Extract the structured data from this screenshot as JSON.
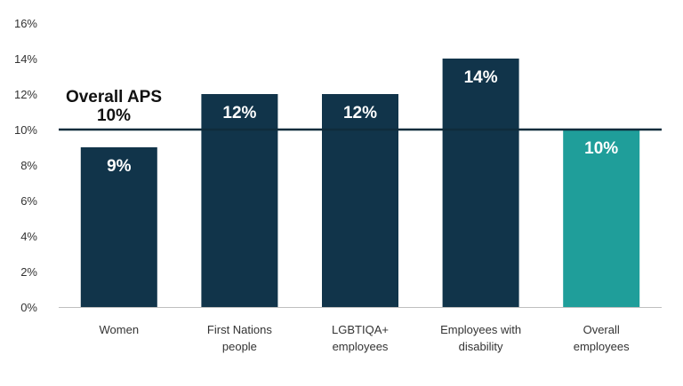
{
  "chart_data": {
    "type": "bar",
    "categories": [
      [
        "Women"
      ],
      [
        "First Nations",
        "people"
      ],
      [
        "LGBTIQA+",
        "employees"
      ],
      [
        "Employees with",
        "disability"
      ],
      [
        "Overall",
        "employees"
      ]
    ],
    "values": [
      9,
      12,
      12,
      14,
      10
    ],
    "data_labels": [
      "9%",
      "12%",
      "12%",
      "14%",
      "10%"
    ],
    "ylim": [
      0,
      16
    ],
    "yticks": [
      0,
      2,
      4,
      6,
      8,
      10,
      12,
      14,
      16
    ],
    "ytick_labels": [
      "0%",
      "2%",
      "4%",
      "6%",
      "8%",
      "10%",
      "12%",
      "14%",
      "16%"
    ],
    "reference_line": {
      "value": 10,
      "label_line1": "Overall APS",
      "label_line2": "10%"
    },
    "grid": false,
    "colors": {
      "bar": "#11344a",
      "highlight_bar": "#1f9e9a",
      "reference_line": "#0f2c3c",
      "axis": "#bfbfbf"
    },
    "highlight_index": 4
  }
}
